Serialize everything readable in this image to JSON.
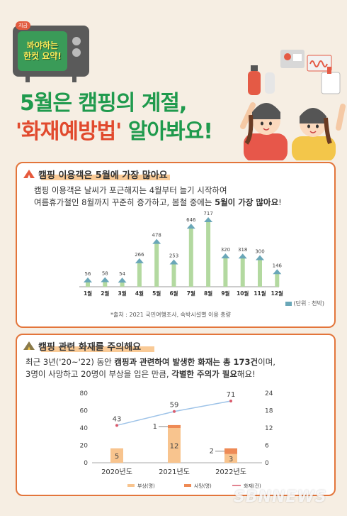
{
  "badge": {
    "tag": "지금",
    "line1": "봐야하는",
    "line2": "한컷 요약!"
  },
  "title": {
    "line1": "5월은 캠핑의 계절,",
    "line2_red": "'화재예방법'",
    "line2_rest": " 알아봐요!"
  },
  "section1": {
    "heading": "캠핑 이용객은 5월에 가장 많아요",
    "desc_line1": "캠핑 이용객은 날씨가 포근해지는 4월부터 늘기 시작하여",
    "desc_line2_plain": "여름휴가철인 8월까지 꾸준히 증가하고, 봄철 중에는 ",
    "desc_line2_bold": "5월이 가장 많아요",
    "desc_line2_end": "!",
    "unit": "(단위 : 천박)",
    "source": "*출처 : 2021 국민여행조사, 숙박시설별 이용 총량"
  },
  "section2": {
    "heading": "캠핑 관련 화재를 주의해요",
    "l1_a": "최근 3년('20~'22) 동안 ",
    "l1_b": "캠핑과 관련하여 발생한 화재는 총 173건",
    "l1_c": "이며,",
    "l2_a": "3명이 사망하고 20명이 부상을 입은 만큼, ",
    "l2_b": "각별한 주의가 필요",
    "l2_c": "해요!",
    "legend": [
      "부상(명)",
      "사망(명)",
      "화재(건)"
    ]
  },
  "watermark": "SBNNEWS",
  "chart_data": [
    {
      "type": "bar",
      "categories": [
        "1월",
        "2월",
        "3월",
        "4월",
        "5월",
        "6월",
        "7월",
        "8월",
        "9월",
        "10월",
        "11월",
        "12월"
      ],
      "values": [
        56,
        58,
        54,
        266,
        478,
        253,
        646,
        717,
        320,
        318,
        300,
        146
      ],
      "ylabel": "(단위 : 천박)",
      "grid": false,
      "colors": {
        "bar": "#b3d9a0",
        "tent": "#6aa7b8"
      }
    },
    {
      "type": "bar",
      "categories": [
        "2020년도",
        "2021년도",
        "2022년도"
      ],
      "series": [
        {
          "name": "부상(명)",
          "values": [
            5,
            12,
            3
          ],
          "color": "#f8c48e"
        },
        {
          "name": "사망(명)",
          "values": [
            0,
            1,
            2
          ],
          "color": "#ee8a55"
        },
        {
          "name": "화재(건)",
          "type": "line",
          "values": [
            43,
            59,
            71
          ],
          "color": "#d95b6c"
        }
      ],
      "left_axis": {
        "ticks": [
          0,
          20,
          40,
          60,
          80
        ],
        "range": [
          0,
          80
        ]
      },
      "right_axis": {
        "ticks": [
          0,
          6,
          12,
          18,
          24
        ],
        "range": [
          0,
          24
        ]
      }
    }
  ]
}
